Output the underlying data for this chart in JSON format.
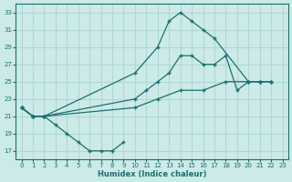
{
  "xlabel": "Humidex (Indice chaleur)",
  "xlim": [
    -0.5,
    23.5
  ],
  "ylim": [
    16,
    34
  ],
  "yticks": [
    17,
    19,
    21,
    23,
    25,
    27,
    29,
    31,
    33
  ],
  "xticks": [
    0,
    1,
    2,
    3,
    4,
    5,
    6,
    7,
    8,
    9,
    10,
    11,
    12,
    13,
    14,
    15,
    16,
    17,
    18,
    19,
    20,
    21,
    22,
    23
  ],
  "bg_color": "#cceae8",
  "grid_color": "#b0d8d4",
  "line_color": "#1a7070",
  "series": [
    {
      "x": [
        0,
        1,
        2,
        10,
        12,
        13,
        14,
        15,
        16,
        17,
        20,
        21,
        22
      ],
      "y": [
        22,
        21,
        21,
        26,
        29,
        32,
        33,
        32,
        31,
        30,
        25,
        25,
        25
      ]
    },
    {
      "x": [
        0,
        1,
        2,
        10,
        11,
        12,
        13,
        14,
        15,
        16,
        17,
        18,
        19,
        20,
        21,
        22
      ],
      "y": [
        22,
        21,
        21,
        23,
        24,
        25,
        26,
        28,
        28,
        27,
        27,
        28,
        24,
        25,
        25,
        25
      ]
    },
    {
      "x": [
        0,
        1,
        2,
        10,
        12,
        14,
        16,
        18,
        20,
        21,
        22
      ],
      "y": [
        22,
        21,
        21,
        22,
        23,
        24,
        24,
        25,
        25,
        25,
        25
      ]
    },
    {
      "x": [
        0,
        1,
        2,
        3,
        4,
        5,
        6,
        7,
        8,
        9
      ],
      "y": [
        22,
        21,
        21,
        20,
        19,
        18,
        17,
        17,
        17,
        18
      ]
    }
  ]
}
